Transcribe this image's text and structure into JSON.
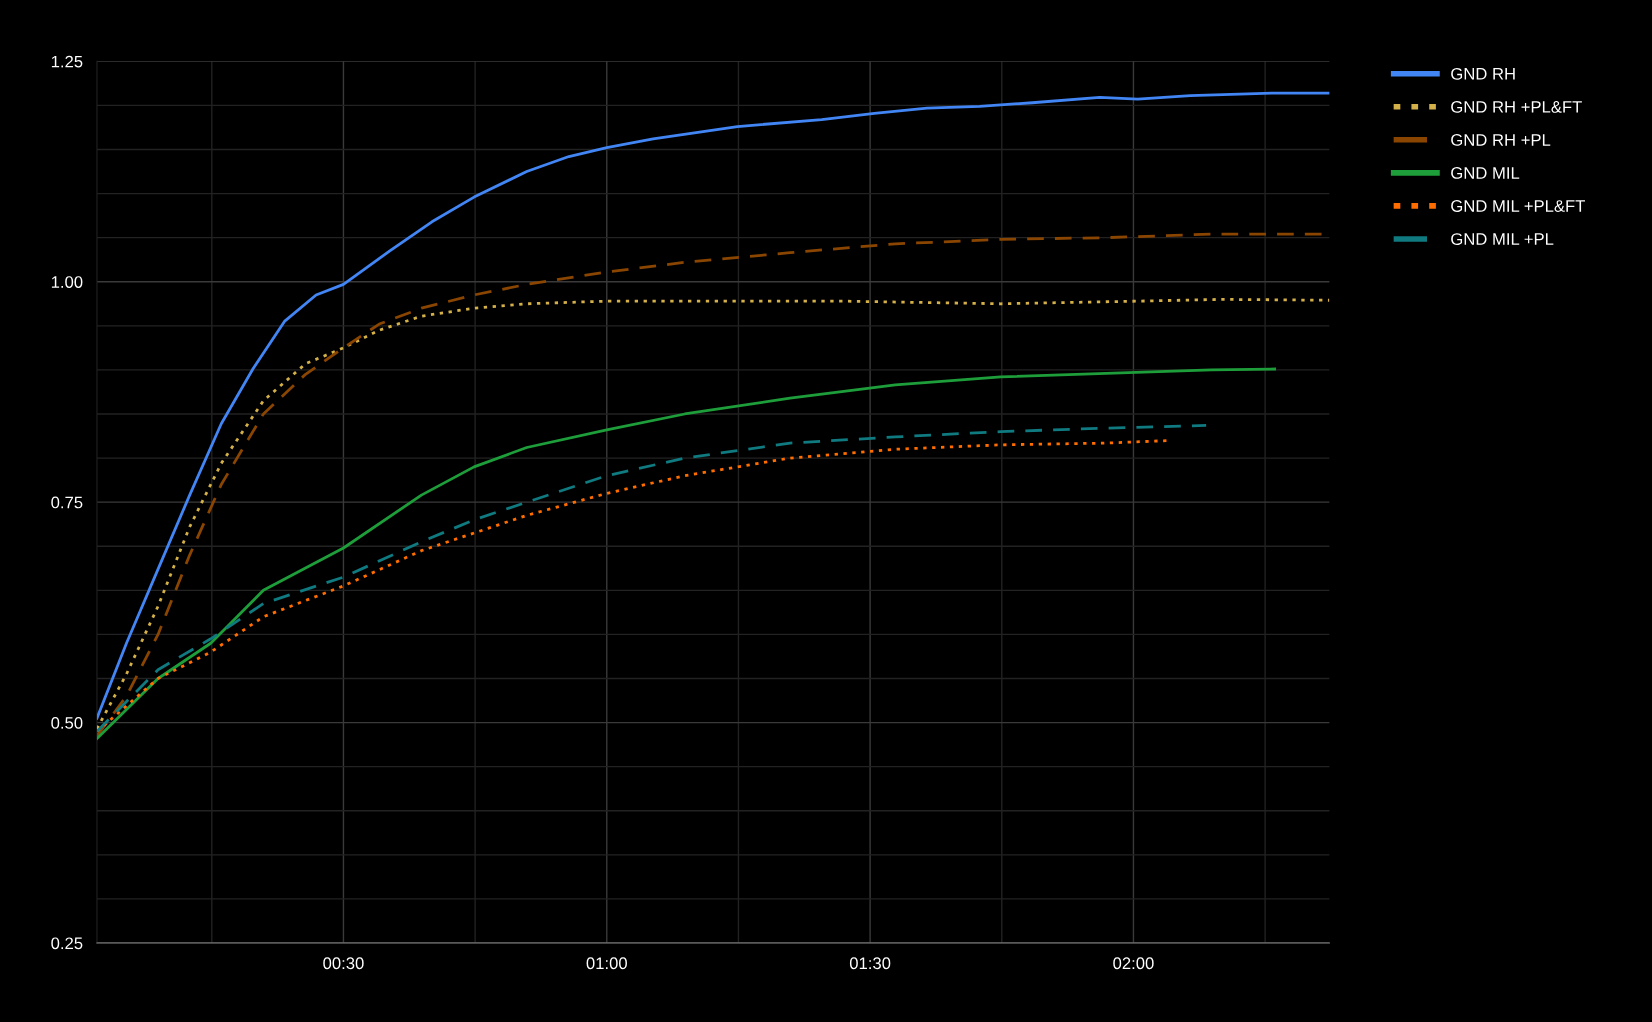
{
  "chart_data": {
    "type": "line",
    "grid": true,
    "legend": "right",
    "xlim": [
      0.032,
      2.372
    ],
    "ylim": [
      0.25,
      1.25
    ],
    "xticks": [
      {
        "value": 0.25,
        "label": null
      },
      {
        "value": 0.5,
        "label": "00:30"
      },
      {
        "value": 0.75,
        "label": null
      },
      {
        "value": 1.0,
        "label": "01:00"
      },
      {
        "value": 1.25,
        "label": null
      },
      {
        "value": 1.5,
        "label": "01:30"
      },
      {
        "value": 1.75,
        "label": null
      },
      {
        "value": 2.0,
        "label": "02:00"
      },
      {
        "value": 2.25,
        "label": null
      }
    ],
    "yticks": [
      {
        "value": 0.25,
        "label": "0.25"
      },
      {
        "value": 0.3,
        "label": null
      },
      {
        "value": 0.35,
        "label": null
      },
      {
        "value": 0.4,
        "label": null
      },
      {
        "value": 0.45,
        "label": null
      },
      {
        "value": 0.5,
        "label": "0.50"
      },
      {
        "value": 0.55,
        "label": null
      },
      {
        "value": 0.6,
        "label": null
      },
      {
        "value": 0.65,
        "label": null
      },
      {
        "value": 0.7,
        "label": null
      },
      {
        "value": 0.75,
        "label": "0.75"
      },
      {
        "value": 0.8,
        "label": null
      },
      {
        "value": 0.85,
        "label": null
      },
      {
        "value": 0.9,
        "label": null
      },
      {
        "value": 0.95,
        "label": null
      },
      {
        "value": 1.0,
        "label": "1.00"
      },
      {
        "value": 1.05,
        "label": null
      },
      {
        "value": 1.1,
        "label": null
      },
      {
        "value": 1.15,
        "label": null
      },
      {
        "value": 1.2,
        "label": null
      },
      {
        "value": 1.25,
        "label": "1.25"
      }
    ],
    "series": [
      {
        "name": "GND RH",
        "color": "#4285f4",
        "line_style": "solid",
        "x": [
          0.032,
          0.088,
          0.148,
          0.208,
          0.268,
          0.328,
          0.388,
          0.448,
          0.5,
          0.588,
          0.668,
          0.748,
          0.848,
          0.928,
          1.0,
          1.088,
          1.248,
          1.408,
          1.508,
          1.608,
          1.708,
          1.808,
          1.936,
          2.008,
          2.108,
          2.268,
          2.372
        ],
        "values": [
          0.505,
          0.59,
          0.674,
          0.758,
          0.839,
          0.901,
          0.955,
          0.985,
          0.997,
          1.035,
          1.068,
          1.096,
          1.125,
          1.142,
          1.152,
          1.162,
          1.176,
          1.184,
          1.191,
          1.197,
          1.199,
          1.203,
          1.209,
          1.207,
          1.211,
          1.214,
          1.214
        ]
      },
      {
        "name": "GND RH +PL&FT",
        "color": "#d4b048",
        "line_style": "dotted",
        "x": [
          0.032,
          0.088,
          0.148,
          0.208,
          0.268,
          0.348,
          0.428,
          0.5,
          0.568,
          0.648,
          0.748,
          0.848,
          1.0,
          1.448,
          1.748,
          2.008,
          2.168,
          2.372
        ],
        "values": [
          0.493,
          0.555,
          0.632,
          0.722,
          0.794,
          0.865,
          0.907,
          0.925,
          0.945,
          0.961,
          0.97,
          0.975,
          0.978,
          0.978,
          0.975,
          0.978,
          0.98,
          0.979
        ]
      },
      {
        "name": "GND RH +PL",
        "color": "#8a4500",
        "line_style": "dashed",
        "x": [
          0.032,
          0.088,
          0.148,
          0.208,
          0.268,
          0.348,
          0.428,
          0.5,
          0.568,
          0.648,
          0.748,
          0.848,
          1.0,
          1.148,
          1.348,
          1.548,
          1.748,
          1.948,
          2.148,
          2.372
        ],
        "values": [
          0.485,
          0.53,
          0.6,
          0.69,
          0.77,
          0.85,
          0.895,
          0.925,
          0.952,
          0.97,
          0.985,
          0.997,
          1.011,
          1.022,
          1.033,
          1.043,
          1.048,
          1.05,
          1.054,
          1.054
        ]
      },
      {
        "name": "GND MIL",
        "color": "#1e9e3a",
        "line_style": "solid",
        "x": [
          0.032,
          0.148,
          0.248,
          0.348,
          0.5,
          0.648,
          0.748,
          0.848,
          1.0,
          1.148,
          1.348,
          1.548,
          1.748,
          1.948,
          2.148,
          2.268
        ],
        "values": [
          0.482,
          0.55,
          0.59,
          0.65,
          0.698,
          0.758,
          0.79,
          0.812,
          0.832,
          0.85,
          0.868,
          0.883,
          0.892,
          0.896,
          0.9,
          0.901
        ]
      },
      {
        "name": "GND MIL +PL&FT",
        "color": "#ff6d01",
        "line_style": "dotted",
        "x": [
          0.032,
          0.148,
          0.248,
          0.348,
          0.5,
          0.648,
          0.748,
          0.848,
          1.0,
          1.148,
          1.348,
          1.548,
          1.748,
          1.948,
          2.072
        ],
        "values": [
          0.49,
          0.55,
          0.58,
          0.62,
          0.655,
          0.695,
          0.715,
          0.735,
          0.76,
          0.78,
          0.8,
          0.81,
          0.815,
          0.817,
          0.82
        ]
      },
      {
        "name": "GND MIL +PL",
        "color": "#0f7a80",
        "line_style": "dashed",
        "x": [
          0.032,
          0.148,
          0.248,
          0.348,
          0.5,
          0.648,
          0.748,
          0.848,
          1.0,
          1.148,
          1.348,
          1.548,
          1.748,
          1.948,
          2.138
        ],
        "values": [
          0.49,
          0.56,
          0.595,
          0.635,
          0.665,
          0.705,
          0.73,
          0.75,
          0.78,
          0.8,
          0.817,
          0.824,
          0.83,
          0.834,
          0.837
        ]
      }
    ]
  }
}
